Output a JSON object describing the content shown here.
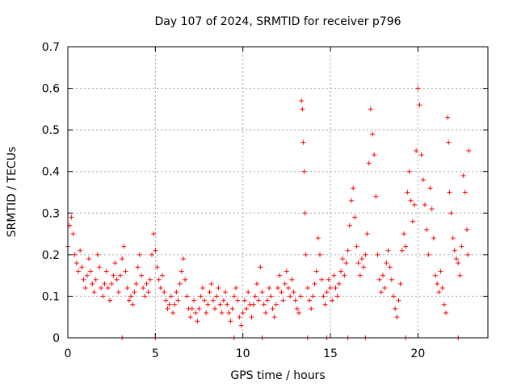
{
  "chart_data": {
    "type": "scatter",
    "title": "Day 107 of 2024, SRMTID for receiver p796",
    "xlabel": "GPS time / hours",
    "ylabel": "SRMTID / TECUs",
    "xlim": [
      0,
      24
    ],
    "ylim": [
      0,
      0.7
    ],
    "xticks": [
      0,
      5,
      10,
      15,
      20
    ],
    "xtick_labels": [
      "0",
      "5",
      "10",
      "15",
      "20"
    ],
    "yticks": [
      0,
      0.1,
      0.2,
      0.3,
      0.4,
      0.5,
      0.6,
      0.7
    ],
    "ytick_labels": [
      "0",
      "0.1",
      "0.2",
      "0.3",
      "0.4",
      "0.5",
      "0.6",
      "0.7"
    ],
    "grid": true,
    "marker": "plus",
    "color": "#ff0000",
    "series": [
      {
        "name": "SRMTID",
        "points": [
          [
            0.0,
            0.22
          ],
          [
            0.1,
            0.27
          ],
          [
            0.2,
            0.29
          ],
          [
            0.3,
            0.25
          ],
          [
            0.4,
            0.2
          ],
          [
            0.5,
            0.18
          ],
          [
            0.6,
            0.16
          ],
          [
            0.7,
            0.21
          ],
          [
            0.8,
            0.17
          ],
          [
            0.9,
            0.14
          ],
          [
            1.0,
            0.12
          ],
          [
            1.1,
            0.15
          ],
          [
            1.2,
            0.19
          ],
          [
            1.3,
            0.16
          ],
          [
            1.4,
            0.13
          ],
          [
            1.5,
            0.11
          ],
          [
            1.6,
            0.14
          ],
          [
            1.7,
            0.2
          ],
          [
            1.8,
            0.17
          ],
          [
            1.9,
            0.12
          ],
          [
            2.0,
            0.1
          ],
          [
            2.1,
            0.13
          ],
          [
            2.2,
            0.16
          ],
          [
            2.3,
            0.12
          ],
          [
            2.4,
            0.09
          ],
          [
            2.5,
            0.13
          ],
          [
            2.6,
            0.15
          ],
          [
            2.7,
            0.18
          ],
          [
            2.8,
            0.14
          ],
          [
            2.9,
            0.11
          ],
          [
            3.0,
            0.15
          ],
          [
            3.1,
            0.19
          ],
          [
            3.2,
            0.22
          ],
          [
            3.3,
            0.16
          ],
          [
            3.4,
            0.12
          ],
          [
            3.5,
            0.09
          ],
          [
            3.6,
            0.1
          ],
          [
            3.7,
            0.08
          ],
          [
            3.8,
            0.11
          ],
          [
            3.9,
            0.13
          ],
          [
            4.0,
            0.17
          ],
          [
            4.1,
            0.2
          ],
          [
            4.2,
            0.15
          ],
          [
            4.3,
            0.12
          ],
          [
            4.4,
            0.1
          ],
          [
            4.5,
            0.13
          ],
          [
            4.6,
            0.11
          ],
          [
            4.7,
            0.14
          ],
          [
            4.8,
            0.2
          ],
          [
            4.9,
            0.25
          ],
          [
            5.0,
            0.21
          ],
          [
            5.1,
            0.17
          ],
          [
            5.2,
            0.14
          ],
          [
            5.3,
            0.12
          ],
          [
            5.4,
            0.15
          ],
          [
            5.5,
            0.11
          ],
          [
            5.6,
            0.09
          ],
          [
            5.7,
            0.07
          ],
          [
            5.8,
            0.08
          ],
          [
            5.9,
            0.1
          ],
          [
            6.0,
            0.06
          ],
          [
            6.1,
            0.08
          ],
          [
            6.2,
            0.11
          ],
          [
            6.3,
            0.09
          ],
          [
            6.4,
            0.13
          ],
          [
            6.5,
            0.16
          ],
          [
            6.6,
            0.19
          ],
          [
            6.7,
            0.14
          ],
          [
            6.8,
            0.1
          ],
          [
            6.9,
            0.07
          ],
          [
            7.0,
            0.05
          ],
          [
            7.1,
            0.07
          ],
          [
            7.2,
            0.09
          ],
          [
            7.3,
            0.06
          ],
          [
            7.4,
            0.04
          ],
          [
            7.5,
            0.07
          ],
          [
            7.6,
            0.1
          ],
          [
            7.7,
            0.12
          ],
          [
            7.8,
            0.09
          ],
          [
            7.9,
            0.06
          ],
          [
            8.0,
            0.08
          ],
          [
            8.1,
            0.11
          ],
          [
            8.2,
            0.13
          ],
          [
            8.3,
            0.09
          ],
          [
            8.4,
            0.07
          ],
          [
            8.5,
            0.1
          ],
          [
            8.6,
            0.12
          ],
          [
            8.7,
            0.08
          ],
          [
            8.8,
            0.06
          ],
          [
            8.9,
            0.09
          ],
          [
            9.0,
            0.11
          ],
          [
            9.1,
            0.08
          ],
          [
            9.2,
            0.06
          ],
          [
            9.3,
            0.04
          ],
          [
            9.4,
            0.07
          ],
          [
            9.5,
            0.1
          ],
          [
            9.6,
            0.12
          ],
          [
            9.7,
            0.09
          ],
          [
            9.8,
            0.05
          ],
          [
            9.9,
            0.03
          ],
          [
            10.0,
            0.06
          ],
          [
            10.1,
            0.09
          ],
          [
            10.2,
            0.07
          ],
          [
            10.3,
            0.11
          ],
          [
            10.4,
            0.08
          ],
          [
            10.5,
            0.05
          ],
          [
            10.6,
            0.08
          ],
          [
            10.7,
            0.1
          ],
          [
            10.8,
            0.13
          ],
          [
            10.9,
            0.09
          ],
          [
            11.0,
            0.17
          ],
          [
            11.1,
            0.11
          ],
          [
            11.2,
            0.08
          ],
          [
            11.3,
            0.06
          ],
          [
            11.4,
            0.09
          ],
          [
            11.5,
            0.12
          ],
          [
            11.6,
            0.1
          ],
          [
            11.7,
            0.07
          ],
          [
            11.8,
            0.05
          ],
          [
            11.9,
            0.08
          ],
          [
            12.0,
            0.12
          ],
          [
            12.1,
            0.15
          ],
          [
            12.2,
            0.11
          ],
          [
            12.3,
            0.09
          ],
          [
            12.4,
            0.13
          ],
          [
            12.5,
            0.16
          ],
          [
            12.6,
            0.12
          ],
          [
            12.7,
            0.1
          ],
          [
            12.8,
            0.14
          ],
          [
            12.9,
            0.11
          ],
          [
            13.0,
            0.09
          ],
          [
            13.1,
            0.07
          ],
          [
            13.2,
            0.06
          ],
          [
            13.3,
            0.1
          ],
          [
            13.35,
            0.57
          ],
          [
            13.4,
            0.55
          ],
          [
            13.45,
            0.47
          ],
          [
            13.5,
            0.4
          ],
          [
            13.55,
            0.3
          ],
          [
            13.6,
            0.2
          ],
          [
            13.7,
            0.12
          ],
          [
            13.8,
            0.09
          ],
          [
            13.9,
            0.07
          ],
          [
            14.0,
            0.1
          ],
          [
            14.1,
            0.13
          ],
          [
            14.2,
            0.16
          ],
          [
            14.3,
            0.24
          ],
          [
            14.4,
            0.2
          ],
          [
            14.5,
            0.14
          ],
          [
            14.6,
            0.1
          ],
          [
            14.7,
            0.08
          ],
          [
            14.8,
            0.11
          ],
          [
            14.9,
            0.14
          ],
          [
            15.0,
            0.12
          ],
          [
            15.1,
            0.09
          ],
          [
            15.2,
            0.15
          ],
          [
            15.3,
            0.12
          ],
          [
            15.4,
            0.1
          ],
          [
            15.5,
            0.13
          ],
          [
            15.6,
            0.16
          ],
          [
            15.7,
            0.19
          ],
          [
            15.8,
            0.15
          ],
          [
            15.9,
            0.18
          ],
          [
            16.0,
            0.21
          ],
          [
            16.1,
            0.27
          ],
          [
            16.2,
            0.33
          ],
          [
            16.3,
            0.36
          ],
          [
            16.4,
            0.29
          ],
          [
            16.5,
            0.22
          ],
          [
            16.6,
            0.18
          ],
          [
            16.7,
            0.15
          ],
          [
            16.8,
            0.19
          ],
          [
            16.9,
            0.17
          ],
          [
            17.0,
            0.2
          ],
          [
            17.1,
            0.25
          ],
          [
            17.2,
            0.42
          ],
          [
            17.3,
            0.55
          ],
          [
            17.4,
            0.49
          ],
          [
            17.5,
            0.44
          ],
          [
            17.6,
            0.34
          ],
          [
            17.7,
            0.2
          ],
          [
            17.8,
            0.14
          ],
          [
            17.9,
            0.11
          ],
          [
            18.0,
            0.15
          ],
          [
            18.1,
            0.12
          ],
          [
            18.2,
            0.18
          ],
          [
            18.3,
            0.21
          ],
          [
            18.4,
            0.17
          ],
          [
            18.5,
            0.14
          ],
          [
            18.6,
            0.1
          ],
          [
            18.7,
            0.07
          ],
          [
            18.8,
            0.05
          ],
          [
            18.9,
            0.09
          ],
          [
            19.0,
            0.13
          ],
          [
            19.1,
            0.21
          ],
          [
            19.2,
            0.25
          ],
          [
            19.3,
            0.22
          ],
          [
            19.4,
            0.35
          ],
          [
            19.5,
            0.4
          ],
          [
            19.6,
            0.33
          ],
          [
            19.7,
            0.28
          ],
          [
            19.8,
            0.32
          ],
          [
            19.9,
            0.45
          ],
          [
            20.0,
            0.6
          ],
          [
            20.1,
            0.56
          ],
          [
            20.2,
            0.44
          ],
          [
            20.3,
            0.38
          ],
          [
            20.4,
            0.32
          ],
          [
            20.5,
            0.26
          ],
          [
            20.6,
            0.2
          ],
          [
            20.7,
            0.36
          ],
          [
            20.8,
            0.31
          ],
          [
            20.9,
            0.24
          ],
          [
            21.0,
            0.15
          ],
          [
            21.1,
            0.13
          ],
          [
            21.2,
            0.11
          ],
          [
            21.3,
            0.16
          ],
          [
            21.4,
            0.12
          ],
          [
            21.5,
            0.08
          ],
          [
            21.6,
            0.06
          ],
          [
            21.7,
            0.53
          ],
          [
            21.75,
            0.47
          ],
          [
            21.8,
            0.35
          ],
          [
            21.9,
            0.3
          ],
          [
            22.0,
            0.24
          ],
          [
            22.1,
            0.21
          ],
          [
            22.2,
            0.19
          ],
          [
            22.3,
            0.18
          ],
          [
            22.4,
            0.15
          ],
          [
            22.5,
            0.22
          ],
          [
            22.6,
            0.39
          ],
          [
            22.7,
            0.35
          ],
          [
            22.8,
            0.26
          ],
          [
            22.85,
            0.2
          ],
          [
            22.9,
            0.45
          ]
        ]
      }
    ],
    "zero_marks": [
      3.1,
      5.0,
      9.5,
      11.1,
      13.7,
      14.8,
      16.0,
      17.0,
      19.3,
      22.3
    ]
  }
}
